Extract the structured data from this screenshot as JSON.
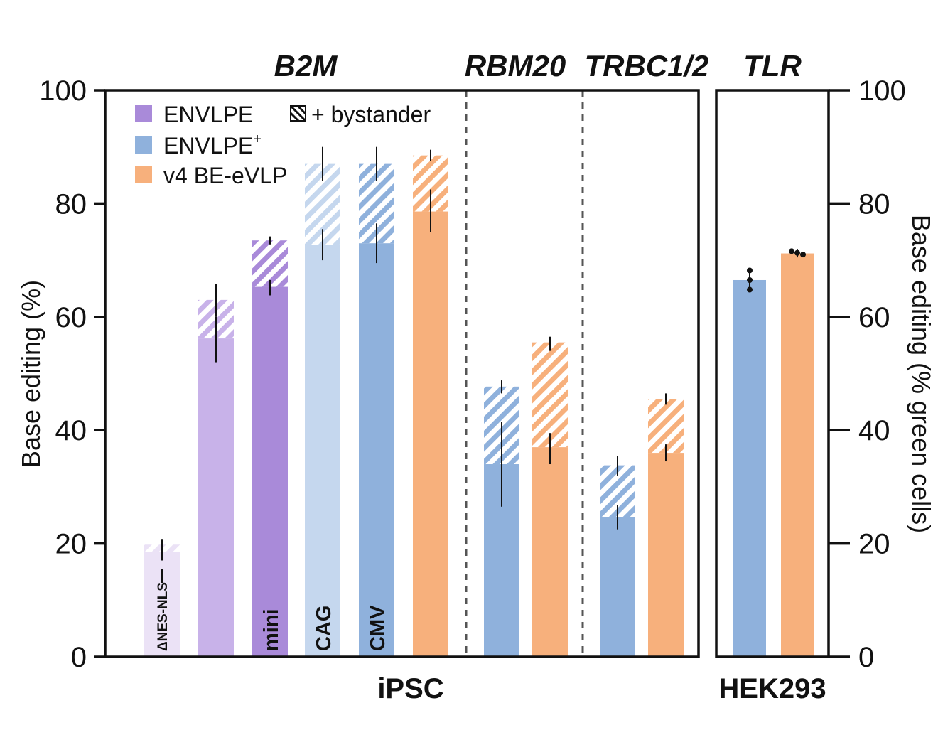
{
  "chart_data": {
    "type": "bar",
    "y_axis_left": {
      "label": "Base editing (%)",
      "ticks": [
        "0",
        "20",
        "40",
        "60",
        "80",
        "100"
      ],
      "ylim": [
        0,
        100
      ]
    },
    "y_axis_right": {
      "label": "Base editing (% green cells)",
      "ticks": [
        "0",
        "20",
        "40",
        "60",
        "80",
        "100"
      ],
      "ylim": [
        0,
        100
      ]
    },
    "cell_labels": {
      "ipsc": "iPSC",
      "hek": "HEK293"
    },
    "group_labels": [
      "B2M",
      "RBM20",
      "TRBC1/2",
      "TLR"
    ],
    "legend": {
      "placement": "top-left",
      "items": [
        {
          "label": "ENVLPE",
          "color": "#a98ad9"
        },
        {
          "label": "ENVLPE",
          "sup": "+",
          "color": "#8fb1dc"
        },
        {
          "label": "v4 BE-eVLP",
          "color": "#f7b07c"
        }
      ],
      "hatch_label": "+ bystander"
    },
    "bars": [
      {
        "group": "B2M",
        "inner_label": "ΔNES-NLS",
        "color": "#ebe2f6",
        "value": 18.5,
        "bystander_total": 19.8,
        "err_solid": [
          17.0,
          20.0
        ],
        "err_total": [
          18.5,
          20.8
        ]
      },
      {
        "group": "B2M",
        "inner_label": "",
        "color": "#c8b2e9",
        "value": 56.2,
        "bystander_total": 63.0,
        "err_solid": [
          52.0,
          60.0
        ],
        "err_total": [
          60.0,
          65.8
        ]
      },
      {
        "group": "B2M",
        "inner_label": "mini",
        "color": "#a98ad9",
        "value": 65.3,
        "bystander_total": 73.5,
        "err_solid": [
          63.8,
          66.5
        ],
        "err_total": [
          72.8,
          74.2
        ]
      },
      {
        "group": "B2M",
        "inner_label": "CAG",
        "color": "#c5d7ee",
        "value": 72.7,
        "bystander_total": 87.0,
        "err_solid": [
          70.0,
          75.5
        ],
        "err_total": [
          84.0,
          90.0
        ]
      },
      {
        "group": "B2M",
        "inner_label": "CMV",
        "color": "#8fb1dc",
        "value": 73.0,
        "bystander_total": 87.0,
        "err_solid": [
          69.5,
          76.5
        ],
        "err_total": [
          84.0,
          90.0
        ]
      },
      {
        "group": "B2M",
        "inner_label": "",
        "color": "#f7b07c",
        "value": 78.6,
        "bystander_total": 88.5,
        "err_solid": [
          75.0,
          82.5
        ],
        "err_total": [
          87.5,
          89.5
        ]
      },
      {
        "group": "RBM20",
        "inner_label": "",
        "color": "#8fb1dc",
        "value": 34.0,
        "bystander_total": 47.7,
        "err_solid": [
          26.5,
          41.5
        ],
        "err_total": [
          46.5,
          48.8
        ]
      },
      {
        "group": "RBM20",
        "inner_label": "",
        "color": "#f7b07c",
        "value": 37.0,
        "bystander_total": 55.5,
        "err_solid": [
          34.0,
          39.5
        ],
        "err_total": [
          54.0,
          56.5
        ]
      },
      {
        "group": "TRBC1/2",
        "inner_label": "",
        "color": "#8fb1dc",
        "value": 24.6,
        "bystander_total": 33.8,
        "err_solid": [
          22.5,
          26.8
        ],
        "err_total": [
          32.0,
          35.5
        ]
      },
      {
        "group": "TRBC1/2",
        "inner_label": "",
        "color": "#f7b07c",
        "value": 36.0,
        "bystander_total": 45.5,
        "err_solid": [
          34.5,
          37.5
        ],
        "err_total": [
          44.5,
          46.5
        ]
      }
    ],
    "tlr_bars": [
      {
        "color": "#8fb1dc",
        "value": 66.5,
        "err": [
          64.5,
          68.5
        ],
        "points": [
          68.2,
          66.5,
          64.8
        ]
      },
      {
        "color": "#f7b07c",
        "value": 71.2,
        "err": [
          70.5,
          72.0
        ],
        "points": [
          71.6,
          71.3,
          71.0
        ]
      }
    ]
  }
}
